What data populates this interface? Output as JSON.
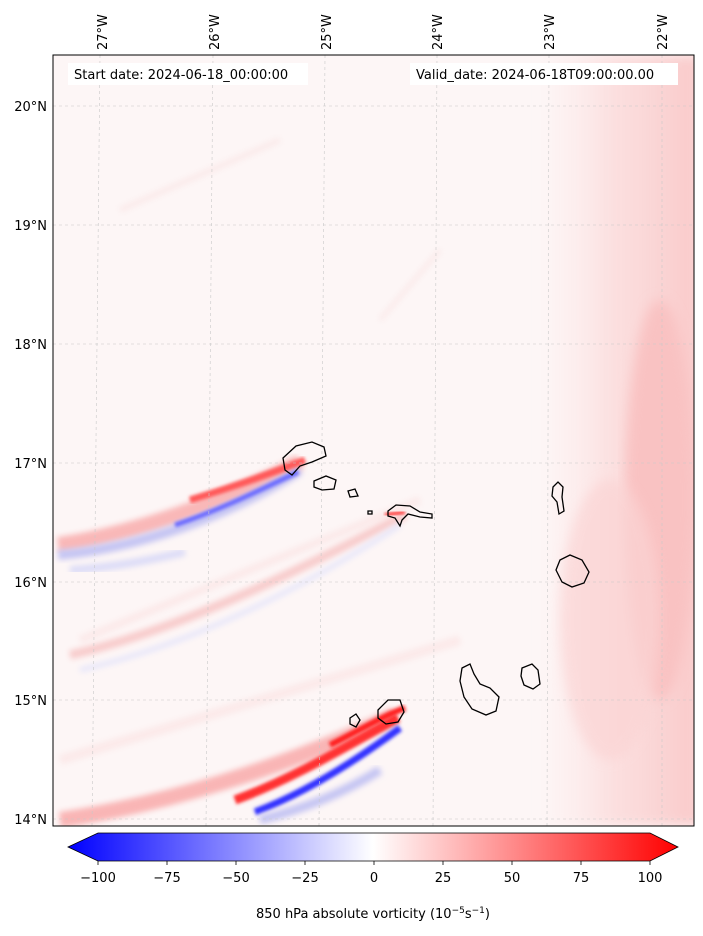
{
  "header": {
    "start_date": "Start date: 2024-06-18_00:00:00",
    "valid_date": "Valid_date: 2024-06-18T09:00:00.00"
  },
  "map": {
    "lon_labels": [
      "27°W",
      "26°W",
      "25°W",
      "24°W",
      "23°W",
      "22°W"
    ],
    "lat_labels": [
      "20°N",
      "19°N",
      "18°N",
      "17°N",
      "16°N",
      "15°N",
      "14°N"
    ],
    "field": "850 hPa absolute vorticity"
  },
  "colorbar": {
    "ticks": [
      "−100",
      "−75",
      "−50",
      "−25",
      "0",
      "25",
      "50",
      "75",
      "100"
    ],
    "label_main": "850 hPa absolute vorticity (10",
    "label_exp1": "−5",
    "label_mid": "s",
    "label_exp2": "−1",
    "label_end": ")",
    "colors": {
      "negative": "#0000ff",
      "zero": "#ffffff",
      "positive": "#ff0000"
    }
  }
}
